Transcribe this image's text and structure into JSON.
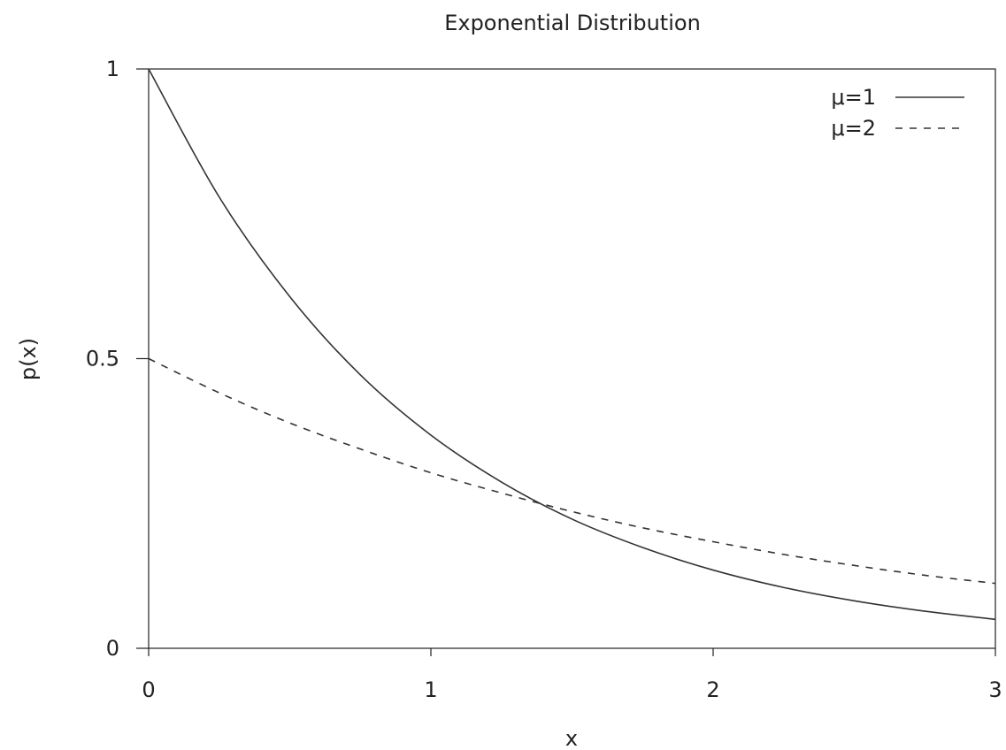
{
  "chart_data": {
    "type": "line",
    "title": "Exponential Distribution",
    "xlabel": "x",
    "ylabel": "p(x)",
    "xlim": [
      0,
      3
    ],
    "ylim": [
      0,
      1
    ],
    "xticks": [
      0,
      1,
      2,
      3
    ],
    "xtick_labels": [
      "0",
      "1",
      "2",
      "3"
    ],
    "yticks": [
      0,
      0.5,
      1
    ],
    "ytick_labels": [
      "0",
      "0.5",
      "1"
    ],
    "grid": false,
    "legend_position": "top-right",
    "series": [
      {
        "name": "μ=1",
        "style": "solid",
        "color": "#333333",
        "x": [
          0,
          0.25,
          0.5,
          0.75,
          1.0,
          1.25,
          1.5,
          1.75,
          2.0,
          2.25,
          2.5,
          2.75,
          3.0
        ],
        "y": [
          1.0,
          0.779,
          0.607,
          0.472,
          0.368,
          0.287,
          0.223,
          0.174,
          0.135,
          0.105,
          0.082,
          0.064,
          0.05
        ]
      },
      {
        "name": "μ=2",
        "style": "dashed",
        "color": "#333333",
        "x": [
          0,
          0.25,
          0.5,
          0.75,
          1.0,
          1.25,
          1.5,
          1.75,
          2.0,
          2.25,
          2.5,
          2.75,
          3.0
        ],
        "y": [
          0.5,
          0.441,
          0.389,
          0.344,
          0.303,
          0.268,
          0.236,
          0.208,
          0.184,
          0.162,
          0.143,
          0.126,
          0.112
        ]
      }
    ]
  }
}
